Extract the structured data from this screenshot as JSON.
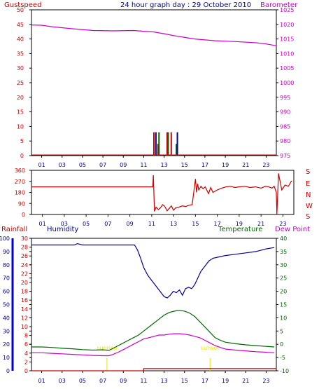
{
  "header": {
    "left_label": "Gustspeed",
    "title": "24 hour graph day : 29 October 2010",
    "right_label": "Barometer"
  },
  "wind_panel": {
    "compass_labels": [
      "S",
      "E",
      "N",
      "W",
      "S"
    ]
  },
  "bottom_panel": {
    "rainfall_label": "Rainfall",
    "humidity_label": "Humidity",
    "temperature_label": "Temperature",
    "dewpoint_label": "Dew Point",
    "sunrise_label": "sunrise",
    "sunset_label": "sunset"
  },
  "colors": {
    "gust": "#cc0000",
    "barometer": "#cc00cc",
    "humidity": "#000099",
    "temperature": "#006600",
    "dewpoint": "#cc00cc",
    "rain": "#cc0000",
    "sun": "#e6e600"
  },
  "chart_data": [
    {
      "type": "line",
      "name": "gust-barometer",
      "x_ticks": [
        "01",
        "03",
        "05",
        "07",
        "09",
        "11",
        "13",
        "15",
        "17",
        "19",
        "21",
        "23"
      ],
      "left_axis": {
        "ylim": [
          0,
          50
        ],
        "ticks": [
          "0",
          "5",
          "10",
          "15",
          "20",
          "25",
          "30",
          "35",
          "40",
          "45",
          "50"
        ]
      },
      "right_axis": {
        "ylim": [
          975,
          1025
        ],
        "ticks": [
          "975",
          "980",
          "985",
          "990",
          "995",
          "1000",
          "1005",
          "1010",
          "1015",
          "1020",
          "1025"
        ]
      },
      "series": [
        {
          "name": "Barometer",
          "axis": "right",
          "x": [
            0,
            1,
            2,
            4,
            6,
            8,
            10,
            12,
            13,
            14,
            16,
            18,
            20,
            22,
            23,
            24
          ],
          "y": [
            1019.8,
            1019.7,
            1019.2,
            1018.5,
            1017.9,
            1017.8,
            1017.9,
            1017.4,
            1016.8,
            1016.1,
            1015.0,
            1014.4,
            1014.1,
            1013.7,
            1013.3,
            1012.7
          ]
        },
        {
          "name": "Gustspeed",
          "axis": "left",
          "x": [
            12.0,
            12.1,
            12.2,
            12.4,
            12.5,
            12.6,
            13.3,
            13.4,
            13.6,
            13.7,
            14.2,
            14.3,
            14.4
          ],
          "y": [
            2,
            0,
            2,
            1,
            2,
            0,
            2,
            2,
            0,
            2,
            1,
            2,
            0
          ]
        }
      ]
    },
    {
      "type": "line",
      "name": "wind-direction",
      "x_ticks": [
        "01",
        "03",
        "05",
        "07",
        "09",
        "11",
        "13",
        "15",
        "17",
        "19",
        "21",
        "23"
      ],
      "left_axis": {
        "ylim": [
          0,
          360
        ],
        "ticks": [
          "0",
          "90",
          "180",
          "270",
          "360"
        ]
      },
      "series": [
        {
          "name": "Wind direction",
          "axis": "left",
          "x": [
            0,
            11.1,
            11.15,
            11.25,
            11.4,
            11.6,
            11.8,
            12.0,
            12.2,
            12.4,
            12.6,
            12.8,
            13.0,
            13.2,
            13.5,
            13.8,
            14.1,
            14.4,
            14.7,
            15.0,
            15.1,
            15.2,
            15.3,
            15.5,
            15.7,
            15.9,
            16.2,
            16.4,
            16.6,
            17.0,
            17.4,
            17.8,
            18.2,
            18.6,
            19.0,
            19.5,
            20.0,
            20.5,
            21.0,
            21.4,
            21.7,
            22.0,
            22.2,
            22.4,
            22.45,
            22.6,
            22.9,
            23.2,
            23.5,
            23.7,
            23.8
          ],
          "y": [
            225,
            225,
            320,
            25,
            60,
            40,
            55,
            80,
            65,
            30,
            50,
            70,
            35,
            55,
            60,
            70,
            65,
            75,
            80,
            290,
            180,
            250,
            200,
            230,
            210,
            225,
            170,
            220,
            180,
            200,
            215,
            225,
            230,
            220,
            225,
            230,
            220,
            225,
            215,
            230,
            225,
            215,
            230,
            180,
            0,
            335,
            200,
            240,
            230,
            260,
            275
          ]
        }
      ]
    },
    {
      "type": "line",
      "name": "humidity-temperature",
      "x_ticks": [
        "01",
        "03",
        "05",
        "07",
        "09",
        "11",
        "13",
        "15",
        "17",
        "19",
        "21",
        "23"
      ],
      "humidity_axis": {
        "ylim": [
          0,
          100
        ],
        "ticks": [
          "0",
          "10",
          "20",
          "30",
          "40",
          "50",
          "60",
          "70",
          "80",
          "90",
          "100"
        ]
      },
      "rainfall_axis": {
        "ylim": [
          0,
          30
        ],
        "ticks": [
          "0",
          "2",
          "4",
          "6",
          "8",
          "10",
          "12",
          "14",
          "16",
          "18",
          "20",
          "22",
          "24",
          "26",
          "28",
          "30"
        ]
      },
      "temperature_axis": {
        "ylim": [
          -10,
          40
        ],
        "ticks": [
          "-10",
          "-5",
          "0",
          "5",
          "10",
          "15",
          "20",
          "25",
          "30",
          "35",
          "40"
        ]
      },
      "sunrise": 7.4,
      "sunset": 17.5,
      "series": [
        {
          "name": "Humidity",
          "axis": "humidity",
          "x": [
            0,
            3,
            4.2,
            4.5,
            5,
            6.5,
            8,
            9.5,
            10.1,
            10.4,
            10.7,
            11.0,
            11.4,
            11.8,
            12.2,
            12.6,
            13.0,
            13.3,
            13.6,
            13.9,
            14.2,
            14.5,
            14.8,
            15.1,
            15.4,
            15.7,
            16.0,
            16.3,
            16.6,
            17.0,
            17.4,
            17.8,
            18.4,
            19.0,
            20.0,
            21.0,
            22.0,
            23.0,
            23.8
          ],
          "y": [
            95,
            95,
            95,
            96,
            95,
            95,
            95,
            95,
            95,
            91,
            85,
            78,
            72,
            68,
            64,
            60,
            56,
            55,
            57,
            60,
            59,
            61,
            57,
            62,
            63,
            62,
            65,
            70,
            75,
            79,
            83,
            85,
            86,
            87,
            88,
            89,
            90,
            92,
            93
          ]
        },
        {
          "name": "Temperature",
          "axis": "temperature",
          "x": [
            0,
            1,
            2,
            3,
            4,
            5,
            6,
            7,
            7.6,
            8,
            8.5,
            9,
            9.5,
            10,
            10.5,
            11,
            11.5,
            12,
            12.5,
            13,
            13.5,
            14,
            14.5,
            15,
            15.5,
            16,
            16.5,
            17,
            17.5,
            18,
            18.5,
            19,
            20,
            21,
            22,
            23,
            23.8
          ],
          "y": [
            -1.0,
            -1.0,
            -1.2,
            -1.5,
            -1.7,
            -2.0,
            -2.2,
            -2.1,
            -2.3,
            -1.5,
            -0.5,
            0.5,
            1.5,
            2.5,
            3.5,
            5.0,
            6.5,
            8.0,
            9.5,
            11.0,
            12.0,
            12.5,
            12.8,
            12.5,
            11.8,
            10.5,
            8.5,
            6.5,
            4.5,
            2.5,
            1.5,
            0.8,
            0.2,
            -0.2,
            -0.5,
            -0.8,
            -1.0
          ]
        },
        {
          "name": "Dew Point",
          "axis": "temperature",
          "x": [
            0,
            1,
            2,
            3,
            4,
            5,
            6,
            7,
            7.6,
            8,
            8.5,
            9,
            9.5,
            10,
            10.5,
            11,
            11.5,
            12,
            12.5,
            13,
            13.5,
            14,
            14.5,
            15,
            15.5,
            16,
            16.5,
            17,
            17.5,
            18,
            18.5,
            19,
            20,
            21,
            22,
            23,
            23.8
          ],
          "y": [
            -3.2,
            -3.2,
            -3.4,
            -3.6,
            -3.8,
            -4.0,
            -4.2,
            -4.3,
            -4.3,
            -3.8,
            -3.0,
            -2.0,
            -1.0,
            0.0,
            1.0,
            2.0,
            2.5,
            3.0,
            3.5,
            3.5,
            3.8,
            4.0,
            4.0,
            3.8,
            3.5,
            3.0,
            2.5,
            1.5,
            0.5,
            -0.5,
            -1.2,
            -1.8,
            -2.2,
            -2.5,
            -2.8,
            -3.0,
            -3.2
          ]
        },
        {
          "name": "Rainfall",
          "axis": "rainfall",
          "x": [
            0,
            11.0,
            11.0,
            24
          ],
          "y": [
            0,
            0,
            0.5,
            0.5
          ]
        }
      ]
    }
  ]
}
